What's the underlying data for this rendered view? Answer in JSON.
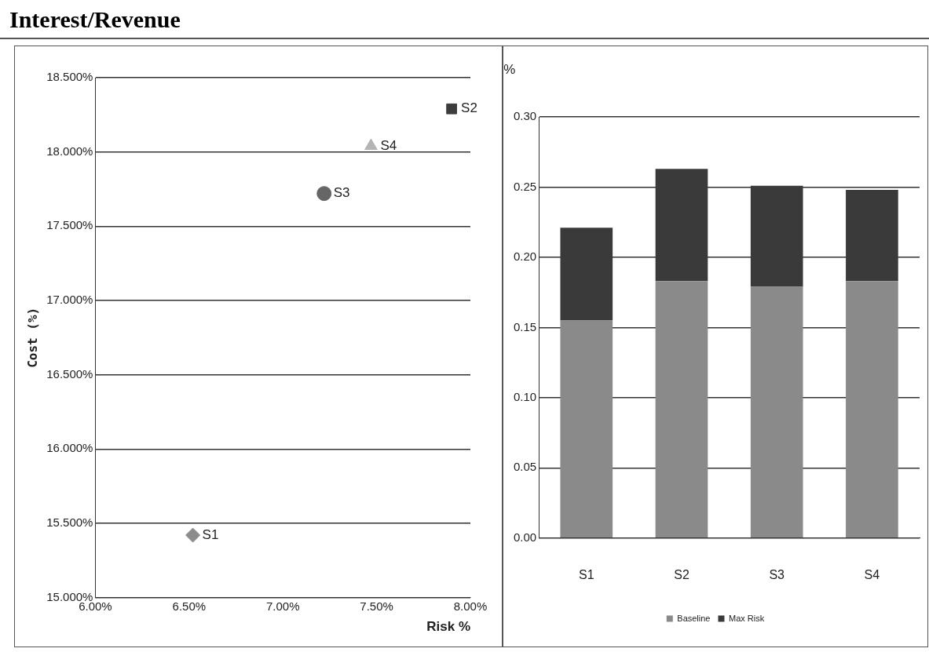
{
  "chart_data": [
    {
      "type": "scatter",
      "title": "Interest/Revenue",
      "xlabel": "Risk %",
      "ylabel": "Cost (%)",
      "series": [
        {
          "name": "S1",
          "color": "#8c8c8c",
          "marker": "diamond",
          "x": [
            6.52
          ],
          "values": [
            15.42
          ]
        },
        {
          "name": "S2",
          "color": "#3c3c3c",
          "marker": "square",
          "x": [
            7.9
          ],
          "values": [
            18.29
          ]
        },
        {
          "name": "S3",
          "color": "#666666",
          "marker": "circle",
          "x": [
            7.22
          ],
          "values": [
            17.72
          ]
        },
        {
          "name": "S4",
          "color": "#b4b4b4",
          "marker": "triangle",
          "x": [
            7.47
          ],
          "values": [
            18.04
          ]
        }
      ],
      "xlim": [
        6,
        8
      ],
      "xticks": [
        {
          "value": 6,
          "label": "6.00%"
        },
        {
          "value": 6.5,
          "label": "6.50%"
        },
        {
          "value": 7,
          "label": "7.00%"
        },
        {
          "value": 7.5,
          "label": "7.50%"
        },
        {
          "value": 8,
          "label": "8.00%"
        }
      ],
      "ylim": [
        15,
        18.5
      ],
      "yticks": [
        {
          "value": 15,
          "label": "15.000%"
        },
        {
          "value": 15.5,
          "label": "15.500%"
        },
        {
          "value": 16,
          "label": "16.000%"
        },
        {
          "value": 16.5,
          "label": "16.500%"
        },
        {
          "value": 17,
          "label": "17.000%"
        },
        {
          "value": 17.5,
          "label": "17.500%"
        },
        {
          "value": 18,
          "label": "18.000%"
        },
        {
          "value": 18.5,
          "label": "18.500%"
        }
      ],
      "grid": "y",
      "legend": false
    },
    {
      "type": "bar",
      "stacked": true,
      "ylabel": "%",
      "categories": [
        "S1",
        "S2",
        "S3",
        "S4"
      ],
      "series": [
        {
          "name": "Baseline",
          "color": "#8a8a8a",
          "values": [
            0.155,
            0.183,
            0.179,
            0.183
          ]
        },
        {
          "name": "Max Risk",
          "color": "#3a3a3a",
          "values": [
            0.066,
            0.08,
            0.072,
            0.065
          ]
        }
      ],
      "ylim": [
        0,
        0.3
      ],
      "yticks": [
        {
          "value": 0,
          "label": "0.00"
        },
        {
          "value": 0.05,
          "label": "0.05"
        },
        {
          "value": 0.1,
          "label": "0.10"
        },
        {
          "value": 0.15,
          "label": "0.15"
        },
        {
          "value": 0.2,
          "label": "0.20"
        },
        {
          "value": 0.25,
          "label": "0.25"
        },
        {
          "value": 0.3,
          "label": "0.30"
        }
      ],
      "grid": "y",
      "legend": "bottom"
    }
  ]
}
